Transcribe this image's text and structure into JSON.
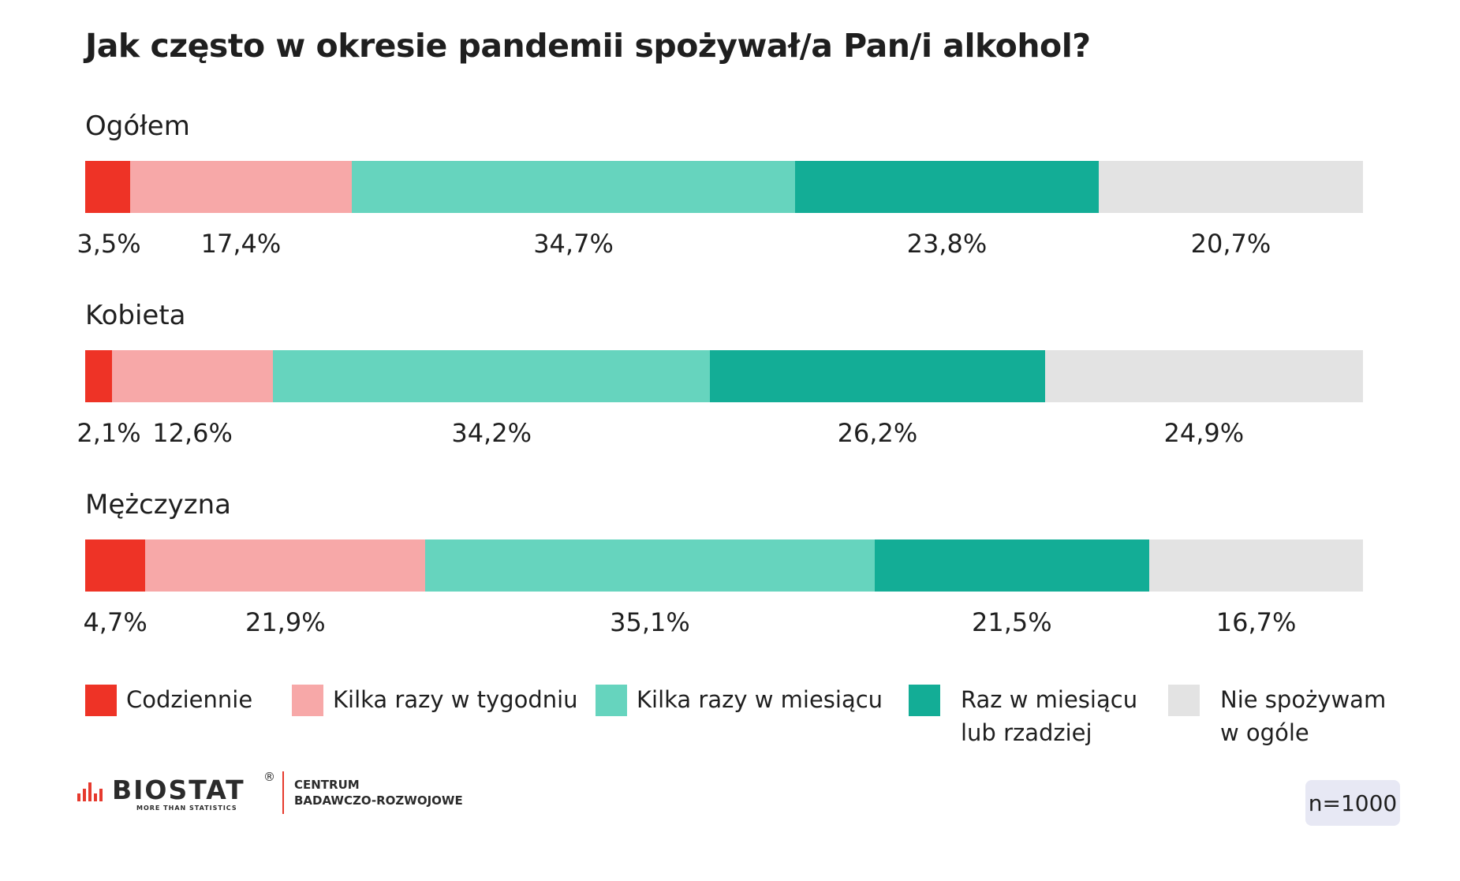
{
  "title": "Jak często w okresie pandemii spożywał/a Pan/i alkohol?",
  "colors": {
    "Codziennie": "#ee3326",
    "Kilka razy w tygodniu": "#f7a8a8",
    "Kilka razy w miesiącu": "#66d4be",
    "Raz w miesiącu lub rzadziej": "#13ad96",
    "Nie spożywam w ogóle": "#e3e3e3"
  },
  "chart_data": {
    "type": "bar",
    "orientation": "horizontal",
    "stacked": true,
    "title": "Jak często w okresie pandemii spożywał/a Pan/i alkohol?",
    "categories": [
      "Ogółem",
      "Kobieta",
      "Mężczyzna"
    ],
    "series": [
      {
        "name": "Codziennie",
        "values": [
          3.5,
          2.1,
          4.7
        ],
        "labels": [
          "3,5%",
          "2,1%",
          "4,7%"
        ]
      },
      {
        "name": "Kilka razy w tygodniu",
        "values": [
          17.4,
          12.6,
          21.9
        ],
        "labels": [
          "17,4%",
          "12,6%",
          "21,9%"
        ]
      },
      {
        "name": "Kilka razy w miesiącu",
        "values": [
          34.7,
          34.2,
          35.1
        ],
        "labels": [
          "34,7%",
          "34,2%",
          "35,1%"
        ]
      },
      {
        "name": "Raz w miesiącu lub rzadziej",
        "values": [
          23.8,
          26.2,
          21.5
        ],
        "labels": [
          "23,8%",
          "26,2%",
          "21,5%"
        ]
      },
      {
        "name": "Nie spożywam w ogóle",
        "values": [
          20.7,
          24.9,
          16.7
        ],
        "labels": [
          "20,7%",
          "24,9%",
          "16,7%"
        ]
      }
    ],
    "grid": false,
    "legend": "bottom"
  },
  "legend": [
    {
      "lines": [
        "Codziennie"
      ]
    },
    {
      "lines": [
        "Kilka razy w tygodniu"
      ]
    },
    {
      "lines": [
        "Kilka razy w miesiącu"
      ]
    },
    {
      "lines": [
        "Raz w miesiącu",
        "lub rzadziej"
      ]
    },
    {
      "lines": [
        "Nie spożywam",
        "w ogóle"
      ]
    }
  ],
  "logo": {
    "brand": "BIOSTAT",
    "tagline": "MORE THAN STATISTICS",
    "center_line1": "CENTRUM",
    "center_line2": "BADAWCZO-ROZWOJOWE"
  },
  "sample_size": "n=1000"
}
